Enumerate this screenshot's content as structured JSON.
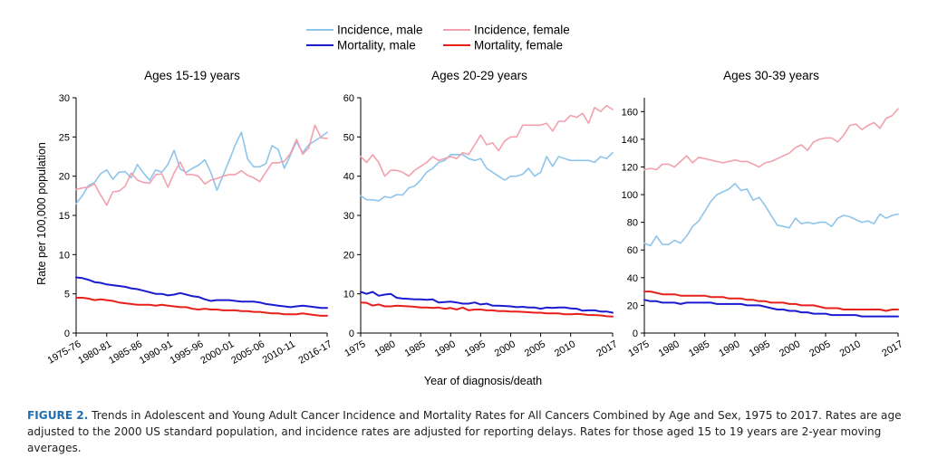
{
  "legend": [
    {
      "label": "Incidence, male",
      "color": "#8ec5ea"
    },
    {
      "label": "Incidence, female",
      "color": "#f2a1ae"
    },
    {
      "label": "Mortality, male",
      "color": "#1b1bd1"
    },
    {
      "label": "Mortality, female",
      "color": "#e8201c"
    }
  ],
  "shared_ylabel": "Rate per 100,000 population",
  "shared_xlabel": "Year of diagnosis/death",
  "caption": {
    "lead": "FIGURE 2.",
    "text": "Trends in Adolescent and Young Adult Cancer Incidence and Mortality Rates for All Cancers Combined by Age and Sex, 1975 to 2017. Rates are age adjusted to the 2000 US standard population, and incidence rates are adjusted for reporting delays. Rates for those aged 15 to 19 years are 2-year moving averages."
  },
  "chart_data": [
    {
      "type": "line",
      "title": "Ages 15-19 years",
      "x": [
        1975.5,
        1976.5,
        1977.5,
        1978.5,
        1979.5,
        1980.5,
        1981.5,
        1982.5,
        1983.5,
        1984.5,
        1985.5,
        1986.5,
        1987.5,
        1988.5,
        1989.5,
        1990.5,
        1991.5,
        1992.5,
        1993.5,
        1994.5,
        1995.5,
        1996.5,
        1997.5,
        1998.5,
        1999.5,
        2000.5,
        2001.5,
        2002.5,
        2003.5,
        2004.5,
        2005.5,
        2006.5,
        2007.5,
        2008.5,
        2009.5,
        2010.5,
        2011.5,
        2012.5,
        2013.5,
        2014.5,
        2015.5,
        2016.5
      ],
      "xticks": [
        "1975-76",
        "1980-81",
        "1985-86",
        "1990-91",
        "1995-96",
        "2000-01",
        "2005-06",
        "2010-11",
        "2016-17"
      ],
      "xtick_positions": [
        1975.5,
        1980.5,
        1985.5,
        1990.5,
        1995.5,
        2000.5,
        2005.5,
        2010.5,
        2016.5
      ],
      "xlim": [
        1975.5,
        2016.5
      ],
      "ylim": [
        0,
        30
      ],
      "yticks": [
        "0",
        "5",
        "10",
        "15",
        "20",
        "25",
        "30"
      ],
      "series": [
        {
          "name": "Incidence, male",
          "color": "#8ec5ea",
          "values": [
            16.5,
            17.5,
            18.8,
            19.2,
            20.3,
            20.8,
            19.6,
            20.5,
            20.6,
            19.8,
            21.5,
            20.4,
            19.5,
            20.8,
            20.5,
            21.5,
            23.3,
            20.9,
            20.5,
            21.0,
            21.4,
            22.1,
            20.5,
            18.2,
            20.1,
            22.0,
            24.0,
            25.6,
            22.2,
            21.2,
            21.2,
            21.6,
            23.9,
            23.4,
            21.0,
            22.7,
            24.4,
            23.0,
            24.0,
            24.5,
            25.0,
            25.6
          ]
        },
        {
          "name": "Incidence, female",
          "color": "#f2a1ae",
          "values": [
            18.3,
            18.5,
            18.6,
            19.0,
            17.6,
            16.3,
            18.0,
            18.1,
            18.7,
            20.4,
            19.5,
            19.2,
            19.1,
            20.2,
            20.3,
            18.6,
            20.4,
            21.8,
            20.2,
            20.2,
            20.0,
            19.0,
            19.5,
            19.7,
            20.0,
            20.2,
            20.2,
            20.7,
            20.1,
            19.8,
            19.3,
            20.5,
            21.7,
            21.7,
            21.9,
            22.9,
            24.7,
            22.8,
            23.6,
            26.5,
            24.9,
            24.8
          ]
        },
        {
          "name": "Mortality, male",
          "color": "#1b1bd1",
          "values": [
            7.1,
            7.0,
            6.8,
            6.5,
            6.4,
            6.2,
            6.1,
            6.0,
            5.9,
            5.7,
            5.6,
            5.4,
            5.2,
            5.0,
            5.0,
            4.8,
            4.9,
            5.1,
            4.9,
            4.7,
            4.6,
            4.3,
            4.1,
            4.2,
            4.2,
            4.2,
            4.1,
            4.0,
            4.0,
            4.0,
            3.9,
            3.7,
            3.6,
            3.5,
            3.4,
            3.3,
            3.4,
            3.5,
            3.4,
            3.3,
            3.2,
            3.2
          ]
        },
        {
          "name": "Mortality, female",
          "color": "#e8201c",
          "values": [
            4.5,
            4.5,
            4.4,
            4.2,
            4.3,
            4.2,
            4.1,
            3.9,
            3.8,
            3.7,
            3.6,
            3.6,
            3.6,
            3.5,
            3.6,
            3.5,
            3.4,
            3.3,
            3.3,
            3.1,
            3.0,
            3.1,
            3.0,
            3.0,
            2.9,
            2.9,
            2.9,
            2.8,
            2.8,
            2.7,
            2.7,
            2.6,
            2.5,
            2.5,
            2.4,
            2.4,
            2.4,
            2.5,
            2.4,
            2.3,
            2.2,
            2.2
          ]
        }
      ]
    },
    {
      "type": "line",
      "title": "Ages 20-29 years",
      "x": [
        1975,
        1976,
        1977,
        1978,
        1979,
        1980,
        1981,
        1982,
        1983,
        1984,
        1985,
        1986,
        1987,
        1988,
        1989,
        1990,
        1991,
        1992,
        1993,
        1994,
        1995,
        1996,
        1997,
        1998,
        1999,
        2000,
        2001,
        2002,
        2003,
        2004,
        2005,
        2006,
        2007,
        2008,
        2009,
        2010,
        2011,
        2012,
        2013,
        2014,
        2015,
        2016,
        2017
      ],
      "xticks": [
        "1975",
        "1980",
        "1985",
        "1990",
        "1995",
        "2000",
        "2005",
        "2010",
        "2017"
      ],
      "xtick_positions": [
        1975,
        1980,
        1985,
        1990,
        1995,
        2000,
        2005,
        2010,
        2017
      ],
      "xlim": [
        1975,
        2017
      ],
      "ylim": [
        0,
        60
      ],
      "yticks": [
        "0",
        "10",
        "20",
        "30",
        "40",
        "50",
        "60"
      ],
      "series": [
        {
          "name": "Incidence, male",
          "color": "#8ec5ea",
          "values": [
            35.0,
            34.0,
            34.0,
            33.7,
            34.8,
            34.5,
            35.3,
            35.2,
            37.0,
            37.5,
            39.0,
            41.0,
            42.0,
            43.5,
            44.0,
            45.5,
            45.5,
            45.5,
            44.5,
            44.0,
            44.5,
            42.0,
            41.0,
            40.0,
            39.0,
            40.0,
            40.0,
            40.5,
            42.0,
            40.0,
            41.0,
            45.0,
            42.5,
            45.0,
            44.5,
            44.0,
            44.0,
            44.0,
            44.0,
            43.5,
            45.0,
            44.5,
            46.0
          ]
        },
        {
          "name": "Incidence, female",
          "color": "#f2a1ae",
          "values": [
            45.0,
            43.5,
            45.5,
            43.5,
            40.0,
            41.5,
            41.5,
            41.0,
            40.0,
            41.5,
            42.5,
            43.5,
            45.0,
            44.0,
            44.5,
            45.0,
            44.5,
            46.0,
            45.5,
            48.0,
            50.5,
            48.0,
            48.5,
            46.5,
            49.0,
            50.0,
            50.0,
            53.0,
            53.0,
            53.0,
            53.0,
            53.5,
            51.5,
            54.0,
            54.0,
            55.5,
            55.0,
            56.0,
            53.5,
            57.5,
            56.5,
            58.0,
            57.0
          ]
        },
        {
          "name": "Mortality, male",
          "color": "#1b1bd1",
          "values": [
            10.5,
            10.0,
            10.5,
            9.5,
            9.8,
            10.0,
            9.0,
            8.8,
            8.7,
            8.6,
            8.6,
            8.5,
            8.6,
            7.8,
            7.9,
            8.0,
            7.8,
            7.5,
            7.5,
            7.8,
            7.3,
            7.5,
            7.0,
            7.0,
            6.9,
            6.8,
            6.6,
            6.7,
            6.5,
            6.5,
            6.2,
            6.5,
            6.4,
            6.5,
            6.5,
            6.3,
            6.2,
            5.7,
            5.8,
            5.8,
            5.5,
            5.5,
            5.2
          ]
        },
        {
          "name": "Mortality, female",
          "color": "#e8201c",
          "values": [
            7.8,
            7.7,
            7.0,
            7.3,
            6.8,
            6.8,
            7.0,
            6.9,
            6.8,
            6.7,
            6.5,
            6.5,
            6.4,
            6.5,
            6.2,
            6.4,
            6.0,
            6.5,
            5.8,
            6.0,
            6.0,
            5.8,
            5.8,
            5.6,
            5.6,
            5.5,
            5.5,
            5.4,
            5.3,
            5.2,
            5.2,
            5.0,
            5.0,
            5.0,
            4.8,
            4.8,
            4.9,
            4.8,
            4.6,
            4.6,
            4.5,
            4.3,
            4.2
          ]
        }
      ]
    },
    {
      "type": "line",
      "title": "Ages 30-39 years",
      "x": [
        1975,
        1976,
        1977,
        1978,
        1979,
        1980,
        1981,
        1982,
        1983,
        1984,
        1985,
        1986,
        1987,
        1988,
        1989,
        1990,
        1991,
        1992,
        1993,
        1994,
        1995,
        1996,
        1997,
        1998,
        1999,
        2000,
        2001,
        2002,
        2003,
        2004,
        2005,
        2006,
        2007,
        2008,
        2009,
        2010,
        2011,
        2012,
        2013,
        2014,
        2015,
        2016,
        2017
      ],
      "xticks": [
        "1975",
        "1980",
        "1985",
        "1990",
        "1995",
        "2000",
        "2005",
        "2010",
        "2017"
      ],
      "xtick_positions": [
        1975,
        1980,
        1985,
        1990,
        1995,
        2000,
        2005,
        2010,
        2017
      ],
      "xlim": [
        1975,
        2017
      ],
      "ylim": [
        0,
        170
      ],
      "yticks": [
        "0",
        "20",
        "40",
        "60",
        "80",
        "100",
        "120",
        "140",
        "160"
      ],
      "ytick_values": [
        0,
        20,
        40,
        60,
        80,
        100,
        120,
        140,
        160
      ],
      "series": [
        {
          "name": "Incidence, male",
          "color": "#8ec5ea",
          "values": [
            65,
            63,
            70,
            64,
            64,
            67,
            65,
            70,
            77,
            81,
            88,
            95,
            100,
            102,
            104,
            108,
            103,
            104,
            96,
            98,
            92,
            85,
            78,
            77,
            76,
            83,
            79,
            80,
            79,
            80,
            80,
            77,
            83,
            85,
            84,
            82,
            80,
            81,
            79,
            86,
            83,
            85,
            86
          ]
        },
        {
          "name": "Incidence, female",
          "color": "#f2a1ae",
          "values": [
            118,
            119,
            118,
            122,
            122,
            120,
            124,
            128,
            123,
            127,
            126,
            125,
            124,
            123,
            124,
            125,
            124,
            124,
            122,
            120,
            123,
            124,
            126,
            128,
            130,
            134,
            136,
            132,
            138,
            140,
            141,
            141,
            138,
            143,
            150,
            151,
            147,
            150,
            152,
            148,
            155,
            157,
            162
          ]
        },
        {
          "name": "Mortality, male",
          "color": "#1b1bd1",
          "values": [
            24,
            23,
            23,
            22,
            22,
            22,
            21,
            22,
            22,
            22,
            22,
            22,
            21,
            21,
            21,
            21,
            21,
            20,
            20,
            20,
            19,
            18,
            17,
            17,
            16,
            16,
            15,
            15,
            14,
            14,
            14,
            13,
            13,
            13,
            13,
            13,
            12,
            12,
            12,
            12,
            12,
            12,
            12
          ]
        },
        {
          "name": "Mortality, female",
          "color": "#e8201c",
          "values": [
            30,
            30,
            29,
            28,
            28,
            28,
            27,
            27,
            27,
            27,
            27,
            26,
            26,
            26,
            25,
            25,
            25,
            24,
            24,
            23,
            23,
            22,
            22,
            22,
            21,
            21,
            20,
            20,
            20,
            19,
            18,
            18,
            18,
            17,
            17,
            17,
            17,
            17,
            17,
            17,
            16,
            17,
            17
          ]
        }
      ]
    }
  ]
}
